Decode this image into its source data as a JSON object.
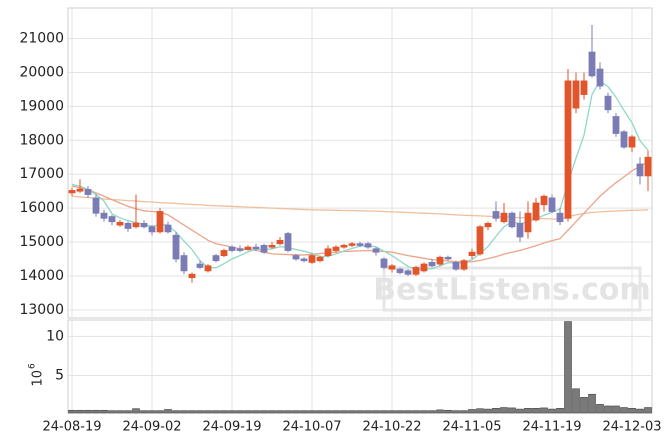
{
  "chart_data": [
    {
      "type": "candlestick",
      "categories": [
        "24-08-19",
        null,
        null,
        null,
        null,
        null,
        null,
        null,
        null,
        null,
        "24-09-02",
        null,
        null,
        null,
        null,
        null,
        null,
        null,
        null,
        null,
        "24-09-19",
        null,
        null,
        null,
        null,
        null,
        null,
        null,
        null,
        null,
        "24-10-07",
        null,
        null,
        null,
        null,
        null,
        null,
        null,
        null,
        null,
        "24-10-22",
        null,
        null,
        null,
        null,
        null,
        null,
        null,
        null,
        null,
        "24-11-05",
        null,
        null,
        null,
        null,
        null,
        null,
        null,
        null,
        null,
        "24-11-19",
        null,
        null,
        null,
        null,
        null,
        null,
        null,
        null,
        null,
        "24-12-03",
        null,
        null
      ],
      "open": [
        16450,
        16500,
        16550,
        16300,
        15850,
        15750,
        15500,
        15550,
        15450,
        15550,
        15450,
        15300,
        15500,
        15200,
        14600,
        13950,
        14350,
        14150,
        14600,
        14600,
        14850,
        14800,
        14780,
        14850,
        14900,
        14850,
        14950,
        15250,
        14600,
        14500,
        14400,
        14450,
        14600,
        14750,
        14850,
        14900,
        14950,
        14950,
        14800,
        14500,
        14200,
        14200,
        14150,
        14050,
        14150,
        14400,
        14350,
        14550,
        14400,
        14200,
        14600,
        14650,
        15450,
        15900,
        15600,
        15850,
        15550,
        15300,
        15650,
        16100,
        16300,
        15850,
        15700,
        18950,
        19350,
        20600,
        20100,
        19300,
        18700,
        18250,
        17800,
        17300,
        16950
      ],
      "high": [
        16600,
        16850,
        16650,
        16400,
        15950,
        15800,
        15650,
        15600,
        16400,
        15650,
        15500,
        16000,
        15600,
        15300,
        14700,
        14100,
        14450,
        14350,
        14650,
        14800,
        14900,
        14900,
        14900,
        14950,
        14950,
        15000,
        15150,
        15300,
        14650,
        14550,
        14650,
        14600,
        14900,
        14900,
        14950,
        15000,
        15000,
        15000,
        14850,
        14550,
        14350,
        14250,
        14200,
        14300,
        14400,
        14500,
        14600,
        14600,
        14450,
        14500,
        14800,
        15500,
        15600,
        16200,
        16150,
        15900,
        15900,
        16200,
        16300,
        16400,
        16400,
        16000,
        20100,
        20000,
        20000,
        21400,
        20300,
        19400,
        18800,
        18300,
        18150,
        17500,
        17700
      ],
      "low": [
        16350,
        16450,
        16300,
        15750,
        15600,
        15500,
        15450,
        15300,
        15400,
        15400,
        15200,
        15250,
        15250,
        14400,
        14050,
        13800,
        14200,
        14100,
        14400,
        14550,
        14700,
        14700,
        14750,
        14750,
        14650,
        14800,
        14900,
        14700,
        14450,
        14400,
        14350,
        14400,
        14550,
        14700,
        14800,
        14850,
        14850,
        14800,
        14600,
        14200,
        14100,
        14050,
        14000,
        14000,
        14100,
        14250,
        14300,
        14450,
        14150,
        14150,
        14500,
        14600,
        15350,
        15600,
        15550,
        15400,
        15000,
        15100,
        15600,
        15900,
        15850,
        15500,
        15600,
        18800,
        19200,
        19850,
        19500,
        18800,
        18100,
        17750,
        17650,
        16700,
        16500
      ],
      "close": [
        16520,
        16560,
        16400,
        15850,
        15700,
        15600,
        15580,
        15400,
        15560,
        15450,
        15300,
        15900,
        15300,
        14500,
        14150,
        14050,
        14250,
        14300,
        14450,
        14750,
        14750,
        14750,
        14850,
        14800,
        14700,
        14900,
        15050,
        14750,
        14500,
        14450,
        14600,
        14550,
        14800,
        14850,
        14900,
        14950,
        14900,
        14850,
        14700,
        14250,
        14300,
        14100,
        14050,
        14250,
        14350,
        14300,
        14550,
        14500,
        14200,
        14450,
        14700,
        15450,
        15550,
        15700,
        15850,
        15450,
        15150,
        15850,
        16150,
        16350,
        15900,
        15600,
        19750,
        19750,
        19750,
        19900,
        19600,
        18900,
        18200,
        17800,
        18100,
        16950,
        17500
      ],
      "up_color": "#e2542a",
      "down_color": "#7b7cb6",
      "series": [
        {
          "color": "#efbf9c",
          "values": [
            16350,
            16330,
            16310,
            16290,
            16270,
            16250,
            16240,
            16220,
            16210,
            16190,
            16180,
            16160,
            16150,
            16140,
            16120,
            16110,
            16100,
            16080,
            16070,
            16060,
            16050,
            16040,
            16030,
            16020,
            16010,
            16000,
            15990,
            15980,
            15970,
            15960,
            15950,
            15945,
            15940,
            15935,
            15930,
            15925,
            15920,
            15915,
            15910,
            15900,
            15890,
            15880,
            15870,
            15860,
            15850,
            15840,
            15830,
            15815,
            15800,
            15790,
            15780,
            15770,
            15760,
            15750,
            15740,
            15730,
            15720,
            15710,
            15700,
            15690,
            15680,
            15670,
            15750,
            15800,
            15840,
            15870,
            15890,
            15905,
            15915,
            15925,
            15935,
            15940,
            15950
          ]
        },
        {
          "color": "#eaa58a",
          "values": [
            16650,
            16600,
            16550,
            16450,
            16350,
            16250,
            16150,
            16050,
            15980,
            15920,
            15900,
            15880,
            15800,
            15650,
            15500,
            15350,
            15200,
            15050,
            14950,
            14900,
            14850,
            14800,
            14780,
            14750,
            14700,
            14650,
            14640,
            14630,
            14620,
            14620,
            14640,
            14660,
            14680,
            14700,
            14720,
            14730,
            14740,
            14750,
            14740,
            14720,
            14700,
            14650,
            14600,
            14560,
            14520,
            14480,
            14460,
            14440,
            14420,
            14410,
            14420,
            14460,
            14510,
            14570,
            14640,
            14700,
            14750,
            14820,
            14890,
            14970,
            15040,
            15100,
            15350,
            15600,
            15850,
            16100,
            16350,
            16560,
            16750,
            16920,
            17100,
            17230,
            17370
          ]
        },
        {
          "color": "#8fd8c8",
          "values": [
            16700,
            16650,
            16550,
            16400,
            16210,
            15830,
            15710,
            15630,
            15570,
            15520,
            15460,
            15520,
            15500,
            15290,
            15030,
            14780,
            14450,
            14250,
            14240,
            14360,
            14500,
            14600,
            14710,
            14790,
            14770,
            14800,
            14860,
            14840,
            14780,
            14730,
            14670,
            14570,
            14580,
            14650,
            14740,
            14810,
            14880,
            14890,
            14860,
            14730,
            14600,
            14440,
            14280,
            14190,
            14210,
            14210,
            14300,
            14390,
            14380,
            14400,
            14480,
            14660,
            14870,
            15170,
            15450,
            15600,
            15540,
            15600,
            15690,
            15790,
            15880,
            15970,
            16750,
            17470,
            18150,
            19350,
            19750,
            19580,
            19270,
            18880,
            18520,
            17990,
            17710
          ]
        }
      ],
      "ylim": [
        12760,
        21900
      ],
      "yticks": [
        13000,
        14000,
        15000,
        16000,
        17000,
        18000,
        19000,
        20000,
        21000
      ],
      "grid": true,
      "annotation": "BestListens.com"
    },
    {
      "type": "bar",
      "values": [
        0.55,
        0.55,
        0.55,
        0.55,
        0.55,
        0.5,
        0.5,
        0.5,
        0.75,
        0.5,
        0.5,
        0.5,
        0.65,
        0.5,
        0.5,
        0.5,
        0.5,
        0.5,
        0.5,
        0.5,
        0.5,
        0.5,
        0.5,
        0.5,
        0.5,
        0.5,
        0.5,
        0.5,
        0.5,
        0.5,
        0.5,
        0.5,
        0.5,
        0.5,
        0.5,
        0.5,
        0.5,
        0.5,
        0.5,
        0.5,
        0.5,
        0.5,
        0.5,
        0.5,
        0.5,
        0.5,
        0.6,
        0.55,
        0.5,
        0.5,
        0.65,
        0.75,
        0.7,
        0.8,
        0.9,
        0.85,
        0.7,
        0.8,
        0.8,
        0.85,
        0.7,
        0.8,
        11.9,
        3.3,
        2.2,
        2.6,
        1.3,
        1.1,
        1.1,
        0.9,
        0.8,
        0.7,
        0.9
      ],
      "color": "#7a7a7a",
      "ylim": [
        0.2,
        12.1
      ],
      "yticks": [
        5,
        10
      ],
      "grid": true,
      "y_label": "10",
      "y_label_exponent": "6"
    }
  ]
}
